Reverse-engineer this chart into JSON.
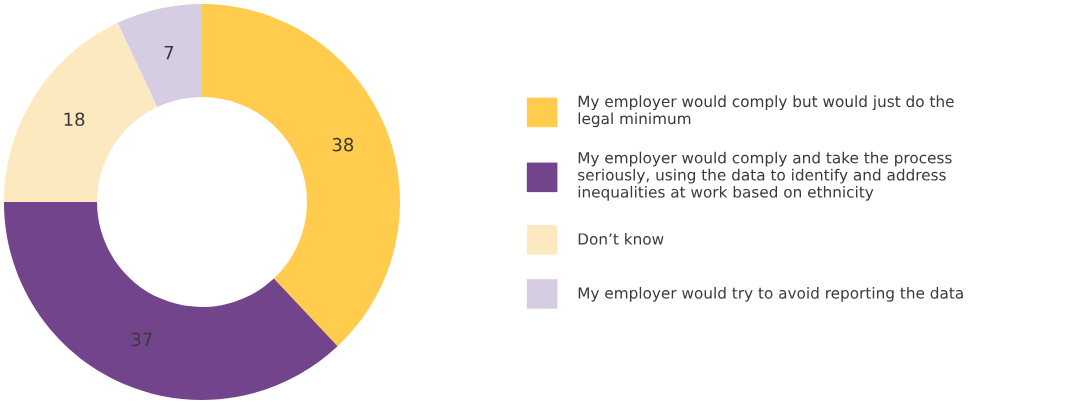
{
  "chart_data": {
    "type": "donut",
    "categories": [
      "My employer would comply but would just do the\nlegal minimum",
      "My employer would comply and take the process\nseriously, using the data to identify and address\ninequalities at work based on ethnicity",
      "Don’t know",
      "My employer would try to avoid reporting the data"
    ],
    "values": [
      38,
      37,
      18,
      7
    ],
    "colors": [
      "#ffcc4d",
      "#71448b",
      "#fde9c0",
      "#d7cde3"
    ],
    "data_labels": true,
    "legend": "right"
  }
}
